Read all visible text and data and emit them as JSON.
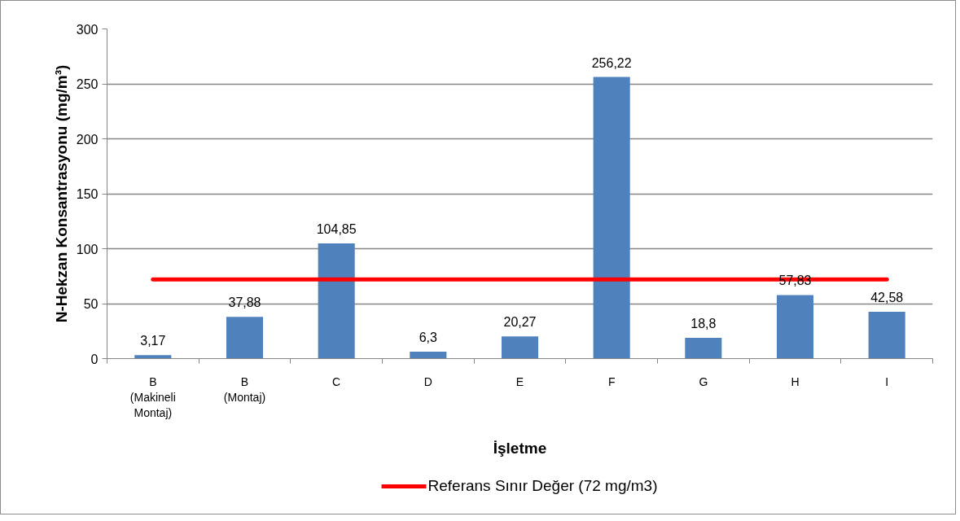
{
  "chart_data": {
    "type": "bar",
    "xlabel": "İşletme",
    "ylabel": "N-Hekzan Konsantrasyonu (mg/m³)",
    "categories": [
      "B (Makineli Montaj)",
      "B (Montaj)",
      "C",
      "D",
      "E",
      "F",
      "G",
      "H",
      "I"
    ],
    "series": [
      {
        "color": "#4f81bd",
        "values": [
          3.17,
          37.88,
          104.85,
          6.3,
          20.27,
          256.22,
          18.8,
          57.83,
          42.58
        ],
        "value_labels": [
          "3,17",
          "37,88",
          "104,85",
          "6,3",
          "20,27",
          "256,22",
          "18,8",
          "57,83",
          "42,58"
        ]
      },
      {
        "type": "line",
        "name": "Referans Sınır Değer (72 mg/m3)",
        "color": "#ff0000",
        "values": [
          72,
          72,
          72,
          72,
          72,
          72,
          72,
          72,
          72
        ]
      }
    ],
    "ylim": [
      0,
      300
    ],
    "yticks": [
      0,
      50,
      100,
      150,
      200,
      250,
      300
    ],
    "grid": "y",
    "legend": "bottom"
  }
}
